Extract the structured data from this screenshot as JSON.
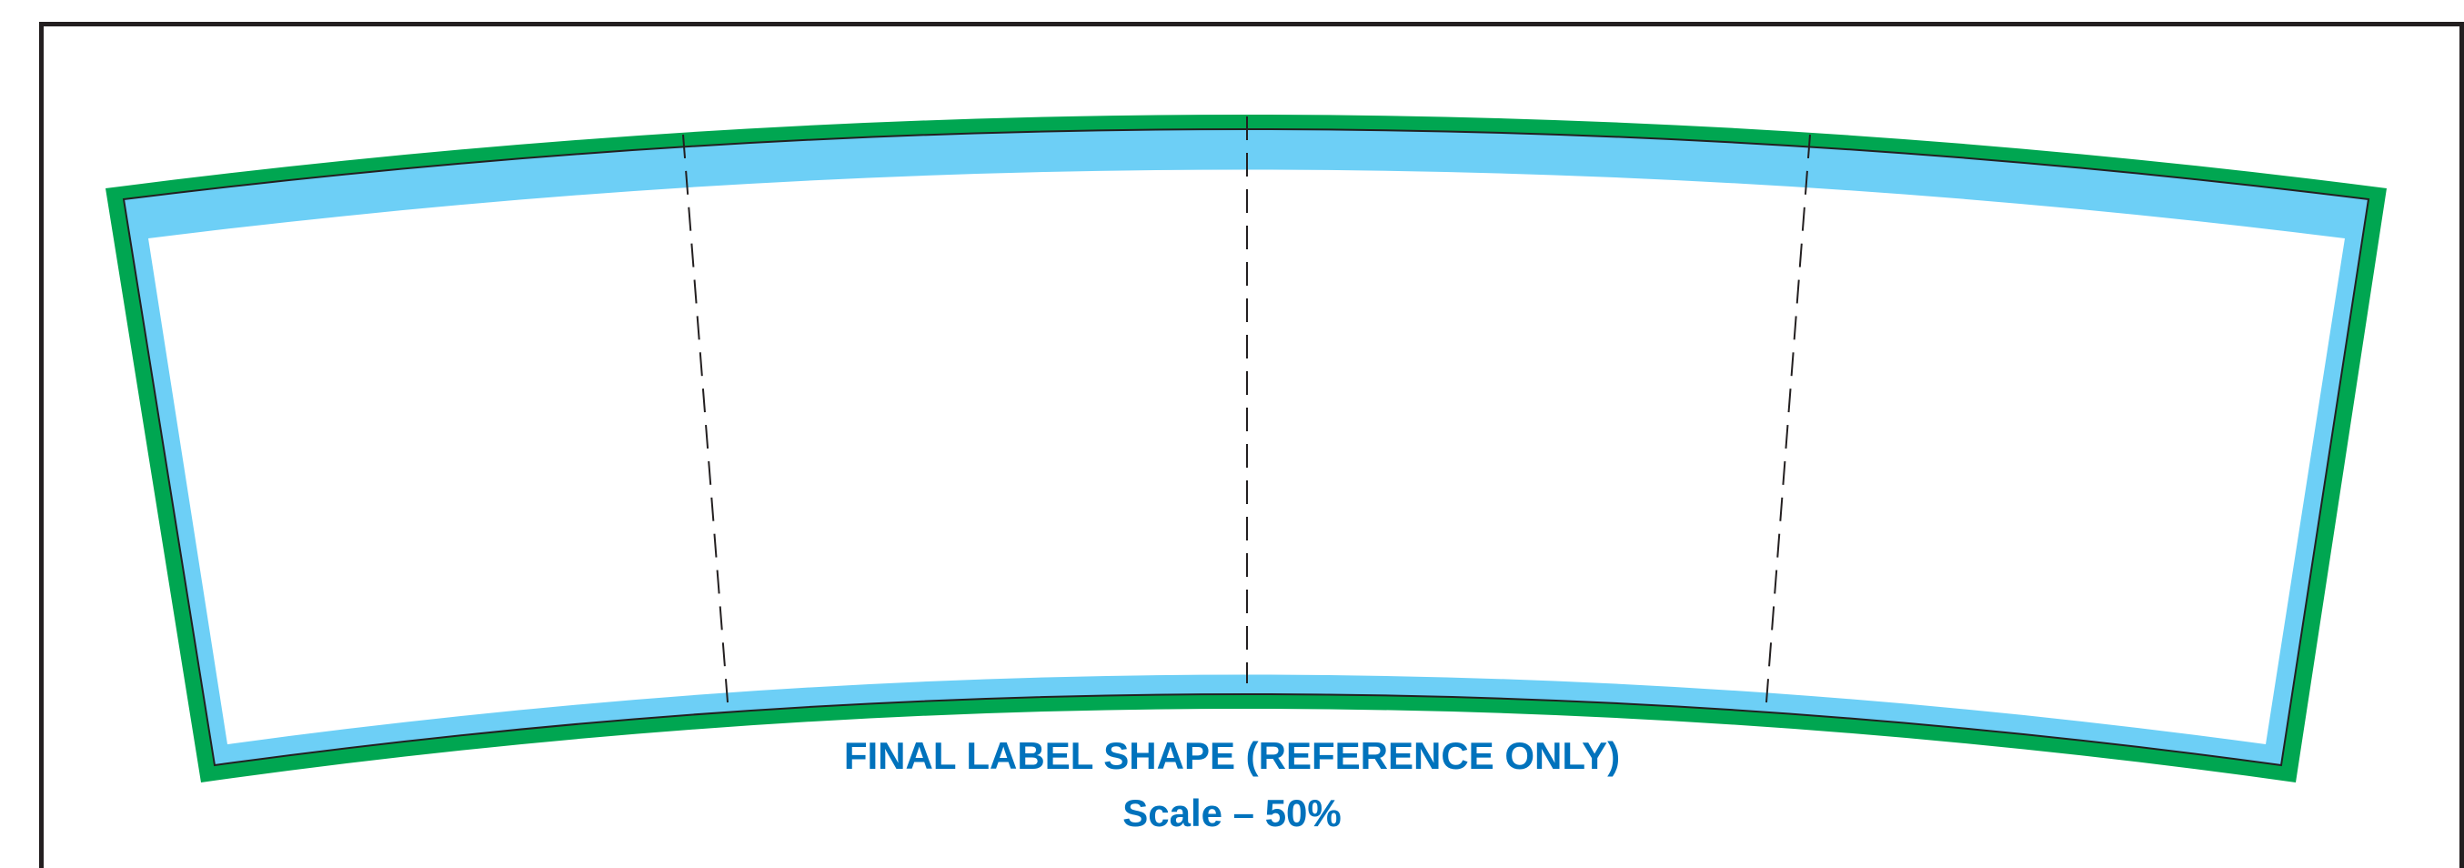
{
  "caption": {
    "title": "FINAL LABEL SHAPE (REFERENCE ONLY)",
    "scale": "Scale – 50%"
  },
  "colors": {
    "outline_green": "#00a651",
    "bleed_blue": "#6dcff6",
    "trim_line": "#231f20",
    "caption_blue": "#0072bc",
    "frame": "#231f20"
  },
  "fold_lines": {
    "count": 3,
    "style": "dashed"
  }
}
